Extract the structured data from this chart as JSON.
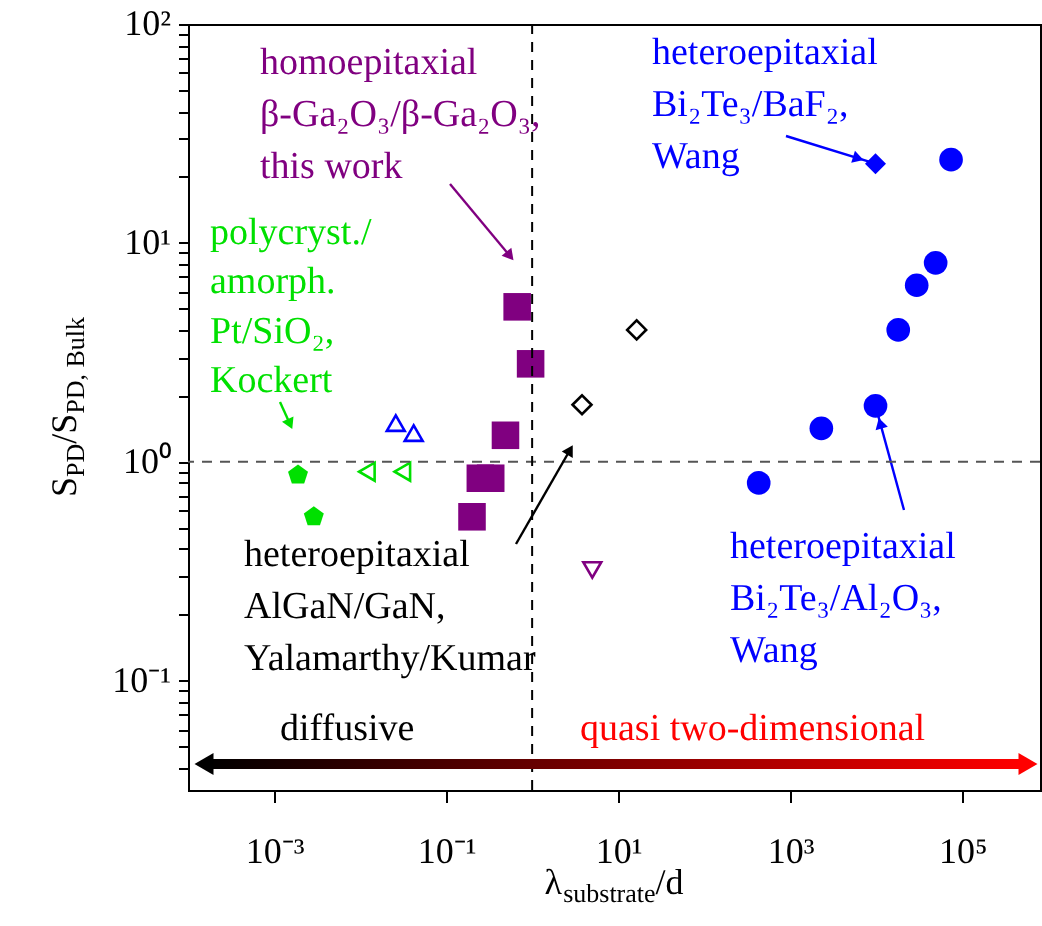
{
  "chart_data": {
    "type": "scatter",
    "log": "xy",
    "grid": false,
    "xlabel": "λ$_{substrate}$/d",
    "ylabel": "S$_{PD}$/S$_{PD, Bulk}$",
    "xlim": [
      0.0001,
      800000
    ],
    "ylim": [
      0.0316,
      100
    ],
    "xticks": [
      {
        "value": 0.001,
        "label": "10⁻³"
      },
      {
        "value": 0.1,
        "label": "10⁻¹"
      },
      {
        "value": 10,
        "label": "10¹"
      },
      {
        "value": 1000,
        "label": "10³"
      },
      {
        "value": 100000,
        "label": "10⁵"
      }
    ],
    "yticks": [
      {
        "value": 0.04,
        "label": null
      },
      {
        "value": 0.05,
        "label": null
      },
      {
        "value": 0.06,
        "label": null
      },
      {
        "value": 0.07,
        "label": null
      },
      {
        "value": 0.08,
        "label": null
      },
      {
        "value": 0.09,
        "label": null
      },
      {
        "value": 0.1,
        "label": "10⁻¹"
      },
      {
        "value": 0.2,
        "label": null
      },
      {
        "value": 0.3,
        "label": null
      },
      {
        "value": 0.4,
        "label": null
      },
      {
        "value": 0.5,
        "label": null
      },
      {
        "value": 0.6,
        "label": null
      },
      {
        "value": 0.7,
        "label": null
      },
      {
        "value": 0.8,
        "label": null
      },
      {
        "value": 0.9,
        "label": null
      },
      {
        "value": 1,
        "label": "10⁰"
      },
      {
        "value": 2,
        "label": null
      },
      {
        "value": 3,
        "label": null
      },
      {
        "value": 4,
        "label": null
      },
      {
        "value": 5,
        "label": null
      },
      {
        "value": 6,
        "label": null
      },
      {
        "value": 7,
        "label": null
      },
      {
        "value": 8,
        "label": null
      },
      {
        "value": 9,
        "label": null
      },
      {
        "value": 10,
        "label": "10¹"
      },
      {
        "value": 20,
        "label": null
      },
      {
        "value": 30,
        "label": null
      },
      {
        "value": 40,
        "label": null
      },
      {
        "value": 50,
        "label": null
      },
      {
        "value": 60,
        "label": null
      },
      {
        "value": 70,
        "label": null
      },
      {
        "value": 80,
        "label": null
      },
      {
        "value": 90,
        "label": null
      },
      {
        "value": 100,
        "label": "10²"
      }
    ],
    "series": [
      {
        "color": "#00e000",
        "x": [
          0.0019,
          0.0029
        ],
        "values": [
          0.87,
          0.56
        ]
      },
      {
        "color": "#00e000",
        "marker": "triangle-left-open",
        "x": [
          0.012,
          0.031
        ],
        "values": [
          0.9,
          0.9
        ]
      },
      {
        "color": "#0000ff",
        "marker": "triangle-open",
        "x": [
          0.026,
          0.042
        ],
        "values": [
          1.5,
          1.35
        ]
      },
      {
        "color": "#800080",
        "marker": "square",
        "x": [
          0.67,
          0.96,
          0.49,
          0.25,
          0.33,
          0.2
        ],
        "values": [
          5.1,
          2.8,
          1.32,
          0.84,
          0.84,
          0.56
        ]
      },
      {
        "color": "#800080",
        "marker": "triangle-down-open",
        "x": [
          5.0
        ],
        "values": [
          0.32
        ]
      },
      {
        "color": "#000000",
        "marker": "diamond-open",
        "x": [
          3.8,
          16.4
        ],
        "values": [
          1.82,
          4.0
        ]
      },
      {
        "color": "#0000ff",
        "marker": "diamond",
        "x": [
          9800
        ],
        "values": [
          23
        ]
      },
      {
        "color": "#0000ff",
        "marker": "circle",
        "x": [
          430,
          2300,
          9800,
          18000,
          29500,
          49000,
          74000
        ],
        "values": [
          0.8,
          1.42,
          1.8,
          4.0,
          6.4,
          8.1,
          24
        ]
      }
    ],
    "ref_lines": [
      {
        "axis": "y",
        "value": 1,
        "line_style": "dashed",
        "color": "#555555"
      },
      {
        "axis": "x",
        "value": 1,
        "line_style": "dashed",
        "color": "#000000"
      }
    ],
    "annotations": [
      "homoepitaxial\nβ-Ga₂O₃/β-Ga₂O₃,\nthis work",
      "polycryst./\namorph.\nPt/SiO₂,\nKockert",
      {
        "text": "heteroepitaxial\nBi₂Te₃/BaF₂,\nWang",
        "x": 9800,
        "y": 23
      },
      {
        "text": "heteroepitaxial\nBi₂Te₃/Al₂O₃,\nWang",
        "x": 9800,
        "y": 1.8
      },
      "heteroepitaxial\nAlGaN/GaN,\nYalamarthy/Kumar",
      "diffusive",
      "quasi two-dimensional"
    ]
  }
}
